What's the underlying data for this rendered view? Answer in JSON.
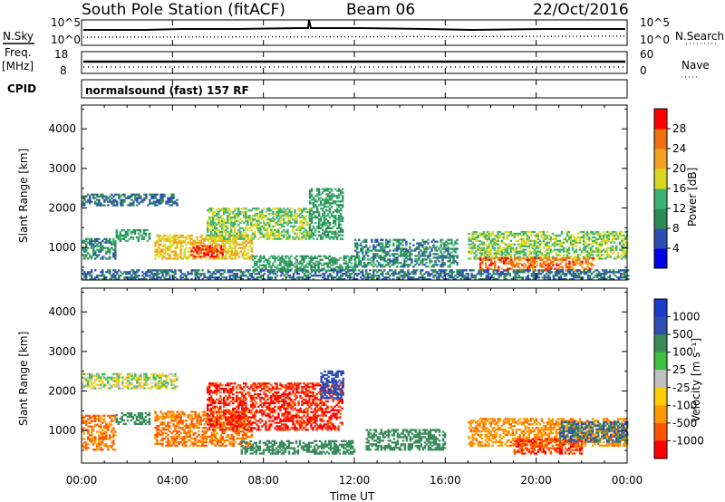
{
  "header": {
    "title": "South Pole Station (fitACF)",
    "beam": "Beam 06",
    "date": "22/Oct/2016"
  },
  "nsky_panel": {
    "left_label": "N.Sky",
    "right_label": "N.Search",
    "left_ticks": [
      "10^5",
      "10^0"
    ],
    "right_ticks": [
      "10^5",
      "10^0"
    ]
  },
  "freq_panel": {
    "left_label_1": "Freq.",
    "left_label_2": "[MHz]",
    "right_label": "Nave",
    "left_ticks": [
      "18",
      "8"
    ],
    "right_ticks": [
      "60",
      "0"
    ]
  },
  "cpid": {
    "label": "CPID",
    "value": "normalsound (fast) 157 RF"
  },
  "x_axis": {
    "label": "Time UT",
    "ticks": [
      "00:00",
      "04:00",
      "08:00",
      "12:00",
      "16:00",
      "20:00",
      "00:00"
    ]
  },
  "power_colorbar": {
    "label": "Power [dB]",
    "ticks": [
      "4",
      "8",
      "12",
      "16",
      "20",
      "24",
      "28"
    ],
    "colors": [
      "#0000e6",
      "#2c4fb4",
      "#2e8b57",
      "#3cb371",
      "#d8d820",
      "#f4a020",
      "#f07010",
      "#ff0000"
    ]
  },
  "velocity_colorbar": {
    "label": "Velocity [m s⁻¹]",
    "ticks": [
      "1000",
      "500",
      "100",
      "25",
      "-25",
      "-100",
      "-500",
      "-1000"
    ],
    "colors": [
      "#1a3cc8",
      "#3050b0",
      "#3a8a5a",
      "#40c040",
      "#c0c0c0",
      "#ffcc00",
      "#ff9900",
      "#ff5500",
      "#ff0000"
    ]
  },
  "chart_data": [
    {
      "type": "heatmap",
      "title": "",
      "xlabel": "Time UT",
      "ylabel": "Slant Range [km]",
      "xlim": [
        0,
        24
      ],
      "ylim": [
        180,
        4600
      ],
      "yticks": [
        1000,
        2000,
        3000,
        4000
      ],
      "colorbar_label": "Power [dB]",
      "colorbar_range": [
        0,
        32
      ],
      "echo_regions": [
        {
          "t": [
            0.0,
            4.2
          ],
          "r": [
            2050,
            2350
          ],
          "value": 8
        },
        {
          "t": [
            0.0,
            1.5
          ],
          "r": [
            700,
            1200
          ],
          "value": 10
        },
        {
          "t": [
            1.5,
            3.0
          ],
          "r": [
            1150,
            1450
          ],
          "value": 12
        },
        {
          "t": [
            3.2,
            7.5
          ],
          "r": [
            700,
            1300
          ],
          "value": 20
        },
        {
          "t": [
            4.8,
            6.2
          ],
          "r": [
            750,
            1050
          ],
          "value": 28
        },
        {
          "t": [
            5.5,
            10.0
          ],
          "r": [
            1200,
            2000
          ],
          "value": 16
        },
        {
          "t": [
            10.0,
            11.5
          ],
          "r": [
            1200,
            2500
          ],
          "value": 12
        },
        {
          "t": [
            7.5,
            12.0
          ],
          "r": [
            400,
            800
          ],
          "value": 12
        },
        {
          "t": [
            12.0,
            16.5
          ],
          "r": [
            500,
            1200
          ],
          "value": 10
        },
        {
          "t": [
            17.0,
            24.0
          ],
          "r": [
            700,
            1400
          ],
          "value": 16
        },
        {
          "t": [
            17.5,
            22.5
          ],
          "r": [
            400,
            750
          ],
          "value": 26
        },
        {
          "t": [
            0.0,
            24.0
          ],
          "r": [
            180,
            450
          ],
          "value": 8
        }
      ]
    },
    {
      "type": "heatmap",
      "title": "",
      "xlabel": "Time UT",
      "ylabel": "Slant Range [km]",
      "xlim": [
        0,
        24
      ],
      "ylim": [
        180,
        4600
      ],
      "yticks": [
        1000,
        2000,
        3000,
        4000
      ],
      "colorbar_label": "Velocity [m s⁻¹]",
      "colorbar_ticks": [
        1000,
        500,
        100,
        25,
        -25,
        -100,
        -500,
        -1000
      ],
      "echo_regions": [
        {
          "t": [
            0.0,
            4.2
          ],
          "r": [
            2050,
            2450
          ],
          "value": 0
        },
        {
          "t": [
            0.0,
            1.5
          ],
          "r": [
            500,
            1400
          ],
          "value": -300
        },
        {
          "t": [
            1.5,
            3.0
          ],
          "r": [
            1150,
            1450
          ],
          "value": 200
        },
        {
          "t": [
            3.2,
            7.5
          ],
          "r": [
            600,
            1500
          ],
          "value": -300
        },
        {
          "t": [
            5.5,
            11.5
          ],
          "r": [
            1000,
            2200
          ],
          "value": -800
        },
        {
          "t": [
            10.5,
            11.5
          ],
          "r": [
            1800,
            2500
          ],
          "value": 600
        },
        {
          "t": [
            7.0,
            12.0
          ],
          "r": [
            400,
            750
          ],
          "value": 150
        },
        {
          "t": [
            12.5,
            16.0
          ],
          "r": [
            500,
            1000
          ],
          "value": 200
        },
        {
          "t": [
            17.0,
            24.0
          ],
          "r": [
            600,
            1300
          ],
          "value": -250
        },
        {
          "t": [
            19.0,
            22.0
          ],
          "r": [
            400,
            800
          ],
          "value": -700
        },
        {
          "t": [
            21.0,
            24.0
          ],
          "r": [
            700,
            1200
          ],
          "value": 300
        }
      ]
    }
  ]
}
